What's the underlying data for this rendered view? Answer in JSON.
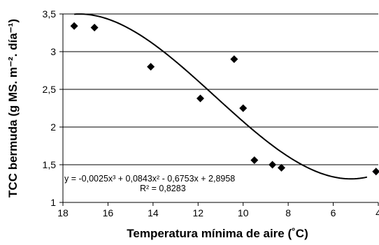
{
  "chart_data": {
    "type": "scatter",
    "xlabel": "Temperatura mínima de aire (˚C)",
    "ylabel": "TCC bermuda (g MS. m⁻². día⁻¹)",
    "xlim": [
      18,
      4
    ],
    "ylim": [
      1,
      3.5
    ],
    "x_reversed": true,
    "grid": "horizontal",
    "x_ticks": [
      {
        "value": 18,
        "label": "18"
      },
      {
        "value": 16,
        "label": "16"
      },
      {
        "value": 14,
        "label": "14"
      },
      {
        "value": 12,
        "label": "12"
      },
      {
        "value": 10,
        "label": "10"
      },
      {
        "value": 8,
        "label": "8"
      },
      {
        "value": 6,
        "label": "6"
      },
      {
        "value": 4,
        "label": "4"
      }
    ],
    "y_ticks": [
      {
        "value": 1,
        "label": "1"
      },
      {
        "value": 1.5,
        "label": "1,5"
      },
      {
        "value": 2,
        "label": "2"
      },
      {
        "value": 2.5,
        "label": "2,5"
      },
      {
        "value": 3,
        "label": "3"
      },
      {
        "value": 3.5,
        "label": "3,5"
      }
    ],
    "points": [
      {
        "x": 17.5,
        "y": 3.34
      },
      {
        "x": 16.6,
        "y": 3.32
      },
      {
        "x": 14.1,
        "y": 2.8
      },
      {
        "x": 11.9,
        "y": 2.38
      },
      {
        "x": 10.4,
        "y": 2.9
      },
      {
        "x": 10.0,
        "y": 2.25
      },
      {
        "x": 9.5,
        "y": 1.56
      },
      {
        "x": 8.7,
        "y": 1.5
      },
      {
        "x": 8.3,
        "y": 1.46
      },
      {
        "x": 4.1,
        "y": 1.41
      }
    ],
    "trendline": {
      "type": "polynomial",
      "coefficients": [
        2.8958,
        -0.6753,
        0.0843,
        -0.0025
      ],
      "x_range": [
        17.5,
        4.5
      ],
      "equation": "y = -0,0025x³ + 0,0843x² - 0,6753x + 2,8958",
      "r2": "R² = 0,8283"
    },
    "colors": {
      "marker": "#000000",
      "trendline": "#000000",
      "grid": "#000000"
    }
  }
}
